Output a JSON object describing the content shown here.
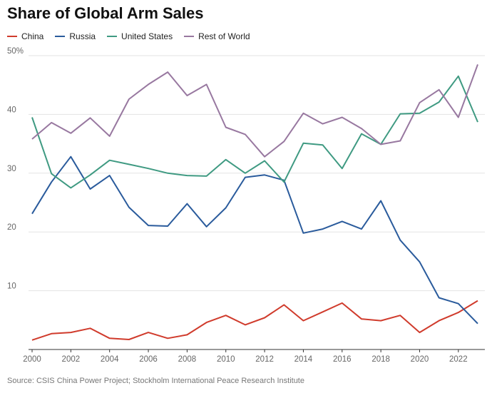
{
  "chart_data": {
    "type": "line",
    "title": "Share of Global Arm Sales",
    "xlabel": "",
    "ylabel": "",
    "x": [
      2000,
      2001,
      2002,
      2003,
      2004,
      2005,
      2006,
      2007,
      2008,
      2009,
      2010,
      2011,
      2012,
      2013,
      2014,
      2015,
      2016,
      2017,
      2018,
      2019,
      2020,
      2021,
      2022,
      2023
    ],
    "xticks": [
      "2000",
      "2002",
      "2004",
      "2006",
      "2008",
      "2010",
      "2012",
      "2014",
      "2016",
      "2018",
      "2020",
      "2022"
    ],
    "ylim": [
      0,
      50
    ],
    "yticks": [
      {
        "value": 10,
        "label": "10"
      },
      {
        "value": 20,
        "label": "20"
      },
      {
        "value": 30,
        "label": "30"
      },
      {
        "value": 40,
        "label": "40"
      },
      {
        "value": 50,
        "label": "50%"
      }
    ],
    "series": [
      {
        "name": "China",
        "color": "#d03b2c",
        "values": [
          1.6,
          2.7,
          2.9,
          3.6,
          1.9,
          1.7,
          2.9,
          1.9,
          2.5,
          4.6,
          5.8,
          4.2,
          5.4,
          7.6,
          4.9,
          6.4,
          7.9,
          5.2,
          4.9,
          5.8,
          2.9,
          4.9,
          6.3,
          8.3
        ]
      },
      {
        "name": "Russia",
        "color": "#2a5b9c",
        "values": [
          23.1,
          28.5,
          32.8,
          27.3,
          29.6,
          24.2,
          21.1,
          21.0,
          24.8,
          20.9,
          24.1,
          29.3,
          29.7,
          28.8,
          19.8,
          20.5,
          21.8,
          20.5,
          25.3,
          18.6,
          14.9,
          8.8,
          7.8,
          4.4
        ]
      },
      {
        "name": "United States",
        "color": "#3f9a82",
        "values": [
          39.5,
          29.9,
          27.5,
          29.7,
          32.2,
          31.5,
          30.8,
          30.0,
          29.6,
          29.5,
          32.3,
          30.0,
          32.1,
          28.5,
          35.1,
          34.8,
          30.8,
          36.7,
          34.9,
          40.1,
          40.2,
          42.1,
          46.5,
          38.7
        ]
      },
      {
        "name": "Rest of World",
        "color": "#9878a0",
        "values": [
          35.8,
          38.6,
          36.8,
          39.4,
          36.3,
          42.6,
          45.1,
          47.2,
          43.2,
          45.1,
          37.8,
          36.6,
          32.8,
          35.4,
          40.2,
          38.4,
          39.5,
          37.6,
          34.9,
          35.5,
          42.0,
          44.2,
          39.5,
          48.5
        ]
      }
    ]
  },
  "source_text": "Source: CSIS China Power Project; Stockholm International Peace Research Institute"
}
